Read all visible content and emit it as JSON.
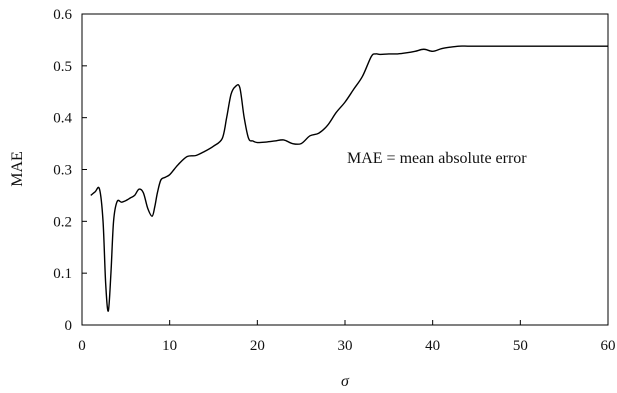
{
  "chart_data": {
    "type": "line",
    "title": "",
    "xlabel": "σ",
    "ylabel": "MAE",
    "annotation": "MAE = mean absolute error",
    "xlim": [
      0,
      60
    ],
    "ylim": [
      0,
      0.6
    ],
    "xticks": [
      "0",
      "10",
      "20",
      "30",
      "40",
      "50",
      "60"
    ],
    "yticks": [
      "0",
      "0.1",
      "0.2",
      "0.3",
      "0.4",
      "0.5",
      "0.6"
    ],
    "grid": false,
    "legend": "none",
    "series": [
      {
        "color": "#000000",
        "x": [
          1,
          1.5,
          2,
          2.4,
          2.7,
          3,
          3.3,
          3.6,
          4,
          4.5,
          5,
          5.5,
          6,
          6.5,
          7,
          7.5,
          8,
          8.3,
          8.6,
          9,
          9.5,
          10,
          10.5,
          11,
          12,
          13,
          14,
          15,
          16,
          16.5,
          17,
          17.5,
          18,
          18.5,
          19,
          19.5,
          20,
          21,
          22,
          23,
          24,
          25,
          26,
          27,
          28,
          29,
          30,
          31,
          32,
          33,
          33.5,
          34,
          35,
          36,
          37,
          38,
          39,
          40,
          41,
          42,
          43,
          44,
          45,
          50,
          55,
          60
        ],
        "y": [
          0.25,
          0.257,
          0.262,
          0.2,
          0.08,
          0.027,
          0.1,
          0.2,
          0.238,
          0.237,
          0.24,
          0.245,
          0.25,
          0.262,
          0.255,
          0.225,
          0.21,
          0.228,
          0.255,
          0.28,
          0.285,
          0.29,
          0.3,
          0.31,
          0.325,
          0.327,
          0.335,
          0.345,
          0.36,
          0.4,
          0.445,
          0.46,
          0.458,
          0.4,
          0.36,
          0.355,
          0.352,
          0.353,
          0.355,
          0.357,
          0.35,
          0.35,
          0.365,
          0.37,
          0.385,
          0.41,
          0.43,
          0.455,
          0.48,
          0.518,
          0.523,
          0.522,
          0.523,
          0.523,
          0.525,
          0.528,
          0.532,
          0.528,
          0.533,
          0.536,
          0.538,
          0.538,
          0.538,
          0.538,
          0.538,
          0.538
        ]
      }
    ]
  }
}
